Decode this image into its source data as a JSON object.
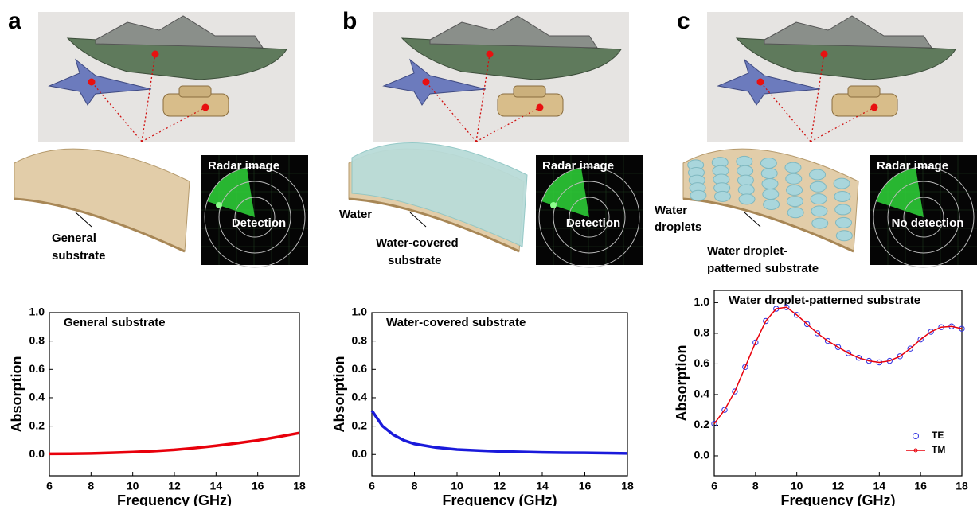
{
  "panels": [
    {
      "label": "a",
      "radar_title": "Radar image",
      "radar_result": "Detection",
      "substrate_label": [
        "General",
        "substrate"
      ]
    },
    {
      "label": "b",
      "radar_title": "Radar image",
      "radar_result": "Detection",
      "substrate_label": [
        "Water-covered",
        "substrate"
      ],
      "water_label": [
        "Water"
      ]
    },
    {
      "label": "c",
      "radar_title": "Radar image",
      "radar_result": "No detection",
      "substrate_label": [
        "Water droplet-",
        "patterned substrate"
      ],
      "water_label": [
        "Water",
        "droplets"
      ]
    }
  ],
  "chart_data": [
    {
      "type": "line",
      "title": "General substrate",
      "x_label": "Frequency (GHz)",
      "y_label": "Absorption",
      "x": [
        6,
        7,
        8,
        9,
        10,
        11,
        12,
        13,
        14,
        15,
        16,
        17,
        18
      ],
      "series": [
        {
          "color": "#e8000b",
          "values": [
            0.005,
            0.006,
            0.008,
            0.012,
            0.017,
            0.024,
            0.033,
            0.046,
            0.062,
            0.08,
            0.1,
            0.125,
            0.152
          ]
        }
      ],
      "xlim": [
        6,
        18
      ],
      "ylim": [
        -0.15,
        1.0
      ],
      "xticks": [
        6,
        8,
        10,
        12,
        14,
        16,
        18
      ],
      "yticks": [
        {
          "value": 0,
          "label": "0.0"
        },
        0.2,
        0.4,
        0.6,
        0.8,
        {
          "value": 1,
          "label": "1.0"
        }
      ]
    },
    {
      "type": "line",
      "title": "Water-covered substrate",
      "x_label": "Frequency (GHz)",
      "y_label": "Absorption",
      "x": [
        6,
        6.5,
        7,
        7.5,
        8,
        9,
        10,
        11,
        12,
        13,
        14,
        15,
        16,
        17,
        18
      ],
      "series": [
        {
          "color": "#1a1adb",
          "values": [
            0.31,
            0.2,
            0.14,
            0.1,
            0.075,
            0.05,
            0.035,
            0.028,
            0.022,
            0.018,
            0.015,
            0.013,
            0.012,
            0.01,
            0.008
          ]
        }
      ],
      "xlim": [
        6,
        18
      ],
      "ylim": [
        -0.15,
        1.0
      ],
      "xticks": [
        6,
        8,
        10,
        12,
        14,
        16,
        18
      ],
      "yticks": [
        {
          "value": 0,
          "label": "0.0"
        },
        0.2,
        0.4,
        0.6,
        0.8,
        {
          "value": 1,
          "label": "1.0"
        }
      ]
    },
    {
      "type": "line",
      "title": "Water droplet-patterned substrate",
      "x_label": "Frequency (GHz)",
      "y_label": "Absorption",
      "x": [
        6,
        6.5,
        7,
        7.5,
        8,
        8.5,
        9,
        9.5,
        10,
        10.5,
        11,
        11.5,
        12,
        12.5,
        13,
        13.5,
        14,
        14.5,
        15,
        15.5,
        16,
        16.5,
        17,
        17.5,
        18
      ],
      "series": [
        {
          "name": "TE",
          "color": "#3030e0",
          "values": [
            0.21,
            0.3,
            0.42,
            0.58,
            0.74,
            0.88,
            0.96,
            0.97,
            0.92,
            0.86,
            0.8,
            0.75,
            0.71,
            0.67,
            0.64,
            0.62,
            0.61,
            0.62,
            0.65,
            0.7,
            0.76,
            0.81,
            0.84,
            0.845,
            0.83
          ]
        },
        {
          "name": "TM",
          "color": "#e8000b",
          "values": [
            0.21,
            0.3,
            0.42,
            0.58,
            0.74,
            0.88,
            0.96,
            0.97,
            0.92,
            0.86,
            0.8,
            0.75,
            0.71,
            0.67,
            0.64,
            0.62,
            0.61,
            0.62,
            0.65,
            0.7,
            0.76,
            0.81,
            0.84,
            0.845,
            0.83
          ]
        }
      ],
      "legend": "lower right",
      "xlim": [
        6,
        18
      ],
      "ylim": [
        -0.13,
        1.08
      ],
      "xticks": [
        6,
        8,
        10,
        12,
        14,
        16,
        18
      ],
      "yticks": [
        {
          "value": 0,
          "label": "0.0"
        },
        0.2,
        0.4,
        0.6,
        0.8,
        {
          "value": 1,
          "label": "1.0"
        }
      ]
    }
  ]
}
